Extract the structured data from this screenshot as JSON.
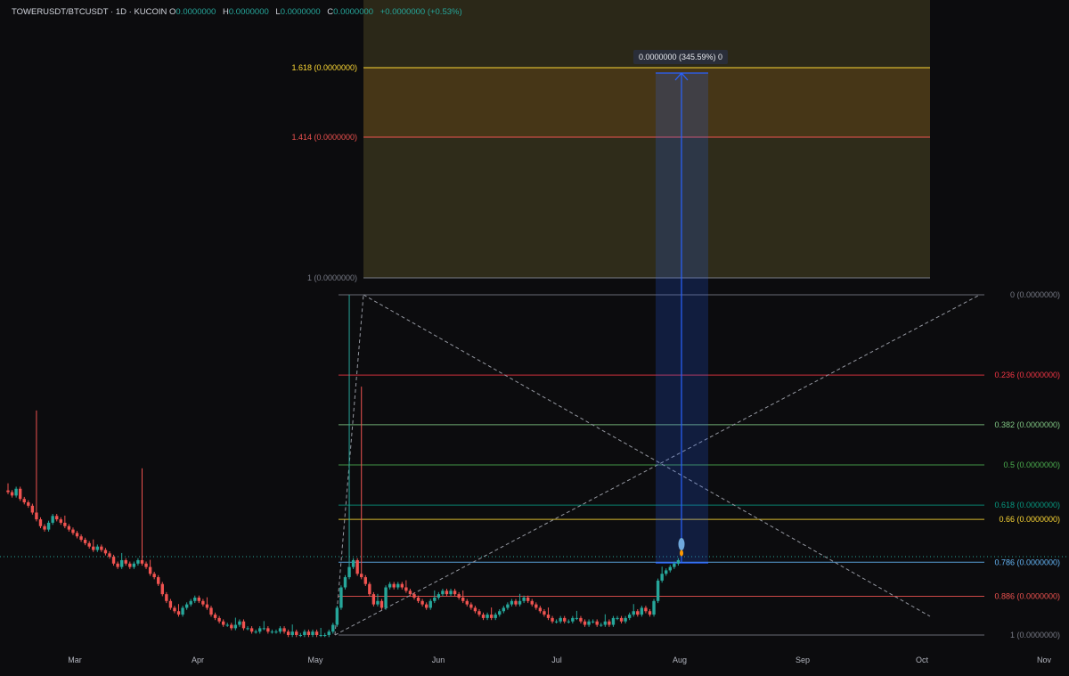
{
  "header": {
    "symbol": "TOWERUSDT/BTCUSDT",
    "separator1": "·",
    "timeframe": "1D",
    "separator2": "·",
    "exchange": "KUCOIN",
    "open_label": "O",
    "open": "0.0000000",
    "high_label": "H",
    "high": "0.0000000",
    "low_label": "L",
    "low": "0.0000000",
    "close_label": "C",
    "close": "0.0000000",
    "change": "+0.0000000 (+0.53%)"
  },
  "measure_tooltip": "0.0000000 (345.59%) 0",
  "colors": {
    "background": "#0c0c0e",
    "up_candle": "#26a69a",
    "down_candle": "#ef5350",
    "measure_blue": "#2962ff"
  },
  "chart_data": {
    "type": "candlestick",
    "x_tick_labels": [
      "Mar",
      "Apr",
      "May",
      "Jun",
      "Jul",
      "Aug",
      "Sep",
      "Oct",
      "Nov"
    ],
    "price_scale": "hidden",
    "grid": false,
    "note_values": "price values masked as 0.0000000 on chart; series given in relative units (pump base = 0, pump peak = 1)",
    "candles_relative": {
      "start": "Feb 20",
      "interval": "1D",
      "close": [
        0.42,
        0.41,
        0.43,
        0.4,
        0.39,
        0.38,
        0.36,
        0.34,
        0.32,
        0.31,
        0.33,
        0.35,
        0.34,
        0.33,
        0.32,
        0.31,
        0.3,
        0.29,
        0.28,
        0.27,
        0.26,
        0.25,
        0.26,
        0.25,
        0.24,
        0.23,
        0.21,
        0.2,
        0.22,
        0.21,
        0.2,
        0.21,
        0.22,
        0.21,
        0.2,
        0.18,
        0.17,
        0.15,
        0.12,
        0.1,
        0.08,
        0.07,
        0.06,
        0.08,
        0.09,
        0.1,
        0.11,
        0.1,
        0.09,
        0.08,
        0.06,
        0.05,
        0.04,
        0.03,
        0.03,
        0.02,
        0.03,
        0.04,
        0.02,
        0.02,
        0.01,
        0.01,
        0.02,
        0.02,
        0.01,
        0.01,
        0.01,
        0.02,
        0.01,
        0.0,
        0.01,
        0.0,
        0.0,
        0.01,
        0.0,
        0.01,
        0.0,
        0.0,
        0.0,
        0.01,
        0.03,
        0.08,
        0.14,
        0.17,
        0.2,
        0.22,
        0.18,
        0.17,
        0.15,
        0.12,
        0.09,
        0.1,
        0.08,
        0.14,
        0.15,
        0.14,
        0.15,
        0.14,
        0.13,
        0.12,
        0.11,
        0.1,
        0.09,
        0.08,
        0.1,
        0.11,
        0.12,
        0.13,
        0.12,
        0.13,
        0.12,
        0.11,
        0.1,
        0.09,
        0.08,
        0.07,
        0.06,
        0.05,
        0.06,
        0.05,
        0.06,
        0.07,
        0.08,
        0.09,
        0.1,
        0.09,
        0.1,
        0.11,
        0.1,
        0.09,
        0.08,
        0.07,
        0.06,
        0.05,
        0.04,
        0.04,
        0.05,
        0.04,
        0.04,
        0.05,
        0.05,
        0.04,
        0.03,
        0.04,
        0.04,
        0.03,
        0.03,
        0.04,
        0.03,
        0.05,
        0.05,
        0.04,
        0.05,
        0.06,
        0.07,
        0.06,
        0.08,
        0.07,
        0.06,
        0.1,
        0.16,
        0.18,
        0.19,
        0.2,
        0.21,
        0.22
      ]
    },
    "fibonacci_retracement": {
      "levels": [
        {
          "label": "0 (0.0000000)",
          "color": "#787b86"
        },
        {
          "label": "0.236 (0.0000000)",
          "color": "#f23645"
        },
        {
          "label": "0.382 (0.0000000)",
          "color": "#81c784"
        },
        {
          "label": "0.5 (0.0000000)",
          "color": "#4caf50"
        },
        {
          "label": "0.618 (0.0000000)",
          "color": "#089981"
        },
        {
          "label": "0.66 (0.0000000)",
          "color": "#fdd835"
        },
        {
          "label": "0.786 (0.0000000)",
          "color": "#64b5f6"
        },
        {
          "label": "0.886 (0.0000000)",
          "color": "#ef5350"
        },
        {
          "label": "1 (0.0000000)",
          "color": "#787b86"
        }
      ]
    },
    "fibonacci_extension": {
      "levels": [
        {
          "label": "1.618 (0.0000000)",
          "color": "#fdd835"
        },
        {
          "label": "1.414 (0.0000000)",
          "color": "#ef5350"
        },
        {
          "label": "1 (0.0000000)",
          "color": "#787b86"
        }
      ]
    },
    "price_range_measure": {
      "percent": "345.59%"
    }
  }
}
